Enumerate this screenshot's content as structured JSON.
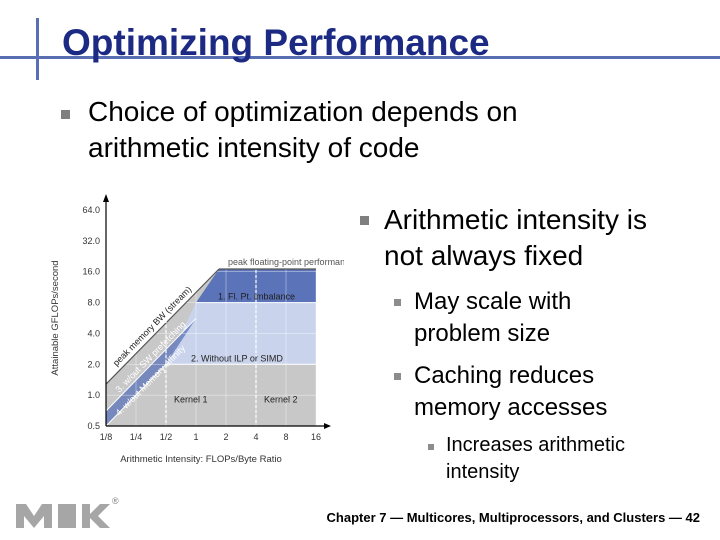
{
  "slide": {
    "title": "Optimizing Performance",
    "bullet1": [
      "Choice of optimization depends on",
      "arithmetic intensity of code"
    ],
    "bullet2": [
      "Arithmetic intensity is",
      "not always fixed"
    ],
    "sub1": [
      "May scale with",
      "problem size"
    ],
    "sub2": [
      "Caching reduces",
      "memory accesses"
    ],
    "subsub1": [
      "Increases arithmetic",
      "intensity"
    ],
    "footer": "Chapter 7 — Multicores, Multiprocessors, and Clusters — 42",
    "logo_mark": "®"
  },
  "colors": {
    "title": "#1c2a84",
    "accent_bar": "#5a6eb4",
    "chart_blue": "#5b73b8",
    "chart_light": "#c9d3ec",
    "chart_gray": "#c8c8c8"
  },
  "chart_data": {
    "type": "line",
    "title": "",
    "xlabel": "Arithmetic Intensity: FLOPs/Byte Ratio",
    "ylabel": "Attainable GFLOPs/second",
    "x_scale": "log2",
    "y_scale": "log2",
    "xlim": [
      0.125,
      16
    ],
    "ylim": [
      0.5,
      64
    ],
    "x_ticks": [
      "1/8",
      "1/4",
      "1/2",
      "1",
      "2",
      "4",
      "8",
      "16"
    ],
    "y_ticks": [
      "0.5",
      "1.0",
      "2.0",
      "4.0",
      "8.0",
      "16.0",
      "32.0",
      "64.0"
    ],
    "series": [
      {
        "name": "peak floating-point performance",
        "x": [
          1.7,
          16
        ],
        "y": [
          17,
          17
        ]
      },
      {
        "name": "peak memory BW (stream)",
        "x": [
          0.125,
          1.7
        ],
        "y": [
          1.28,
          17
        ]
      },
      {
        "name": "1. Fl. Pt. imbalance",
        "x": [
          1.0,
          16
        ],
        "y": [
          8,
          8
        ]
      },
      {
        "name": "2. Without ILP or SIMD",
        "x": [
          0.5,
          16
        ],
        "y": [
          2,
          2
        ]
      },
      {
        "name": "3. w/out SW prefetching",
        "x": [
          0.125,
          1.0
        ],
        "y": [
          0.7,
          5.6
        ]
      },
      {
        "name": "4. w/out Memory affinity",
        "x": [
          0.125,
          0.5
        ],
        "y": [
          0.5,
          2
        ]
      }
    ],
    "vertical_markers": [
      {
        "label": "Kernel 1",
        "x": 0.5
      },
      {
        "label": "Kernel 2",
        "x": 4
      }
    ]
  }
}
